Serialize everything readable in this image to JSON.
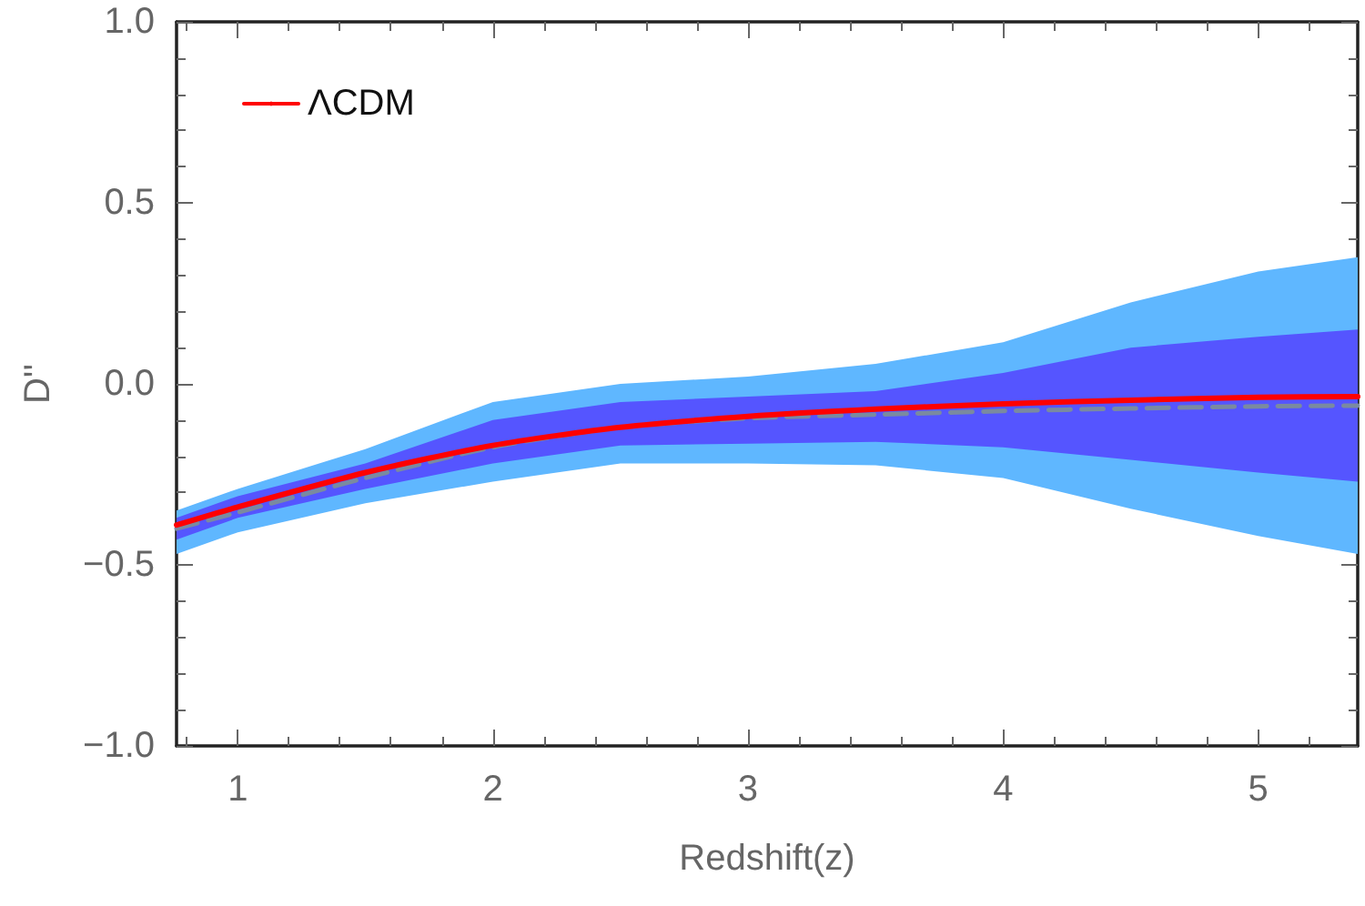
{
  "chart_data": {
    "type": "line",
    "xlabel": "Redshift(z)",
    "ylabel": "D''",
    "x": [
      0.76,
      1,
      1.5,
      2,
      2.5,
      3,
      3.5,
      4,
      4.5,
      5,
      5.39
    ],
    "xlim": [
      0.76,
      5.39
    ],
    "xticks": [
      1,
      2,
      3,
      4,
      5
    ],
    "ylim": [
      -1,
      1
    ],
    "yticks": [
      {
        "value": -1,
        "label": "−1.0"
      },
      {
        "value": -0.5,
        "label": "−0.5"
      },
      {
        "value": 0,
        "label": "0.0"
      },
      {
        "value": 0.5,
        "label": "0.5"
      },
      {
        "value": 1,
        "label": "1.0"
      }
    ],
    "series": [
      {
        "type": "area",
        "color": "#5fb7ff",
        "values": [
          null,
          null,
          null,
          null,
          null,
          null,
          null,
          null,
          null,
          null,
          null
        ],
        "lower": [
          -0.47,
          -0.41,
          -0.33,
          -0.27,
          -0.22,
          -0.22,
          -0.225,
          -0.26,
          -0.345,
          -0.42,
          -0.47
        ],
        "upper": [
          -0.35,
          -0.29,
          -0.18,
          -0.05,
          0.0,
          0.02,
          0.055,
          0.115,
          0.225,
          0.31,
          0.35
        ]
      },
      {
        "type": "area",
        "color": "#5555ff",
        "values": [
          null,
          null,
          null,
          null,
          null,
          null,
          null,
          null,
          null,
          null,
          null
        ],
        "lower": [
          -0.43,
          -0.37,
          -0.29,
          -0.22,
          -0.17,
          -0.165,
          -0.16,
          -0.175,
          -0.21,
          -0.245,
          -0.27
        ],
        "upper": [
          -0.37,
          -0.31,
          -0.22,
          -0.1,
          -0.05,
          -0.035,
          -0.02,
          0.03,
          0.1,
          0.13,
          0.15
        ]
      },
      {
        "color": "#7a8aa0",
        "line_style": "dashed",
        "values": [
          -0.4,
          -0.355,
          -0.26,
          -0.175,
          -0.12,
          -0.095,
          -0.085,
          -0.075,
          -0.068,
          -0.062,
          -0.06
        ]
      },
      {
        "name": "ΛCDM",
        "color": "#ff0000",
        "line_style": "solid",
        "values": [
          -0.39,
          -0.34,
          -0.245,
          -0.17,
          -0.12,
          -0.09,
          -0.07,
          -0.055,
          -0.045,
          -0.037,
          -0.035
        ]
      }
    ],
    "legend": "top left",
    "grid": false,
    "marker": "none"
  }
}
